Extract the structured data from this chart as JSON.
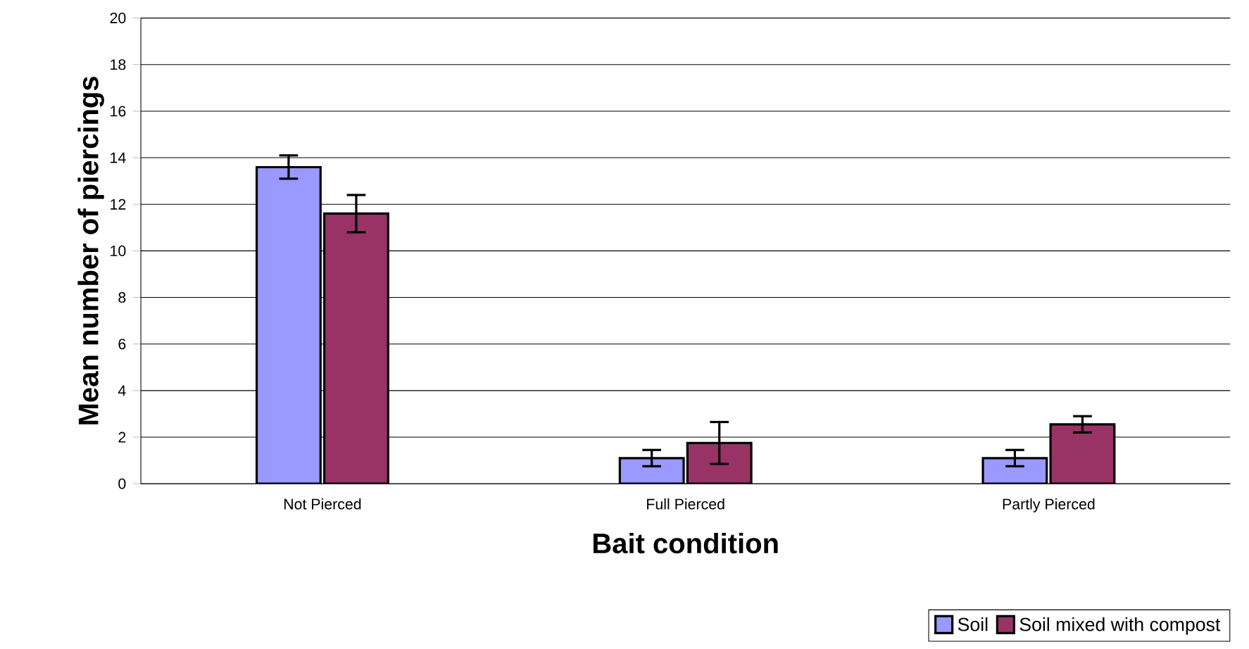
{
  "chart_data": {
    "type": "bar",
    "xlabel": "Bait condition",
    "ylabel": "Mean number of piercings",
    "categories": [
      "Not Pierced",
      "Full Pierced",
      "Partly Pierced"
    ],
    "series": [
      {
        "name": "Soil",
        "color": "#9999ff",
        "values": [
          13.6,
          1.1,
          1.1
        ],
        "errors": [
          0.5,
          0.35,
          0.35
        ]
      },
      {
        "name": "Soil mixed with compost",
        "color": "#993366",
        "values": [
          11.6,
          1.75,
          2.55
        ],
        "errors": [
          0.8,
          0.9,
          0.35
        ]
      }
    ],
    "ylim": [
      0,
      20
    ],
    "yticks": [
      0,
      2,
      4,
      6,
      8,
      10,
      12,
      14,
      16,
      18,
      20
    ],
    "grid": "y",
    "legend": "bottom right"
  }
}
